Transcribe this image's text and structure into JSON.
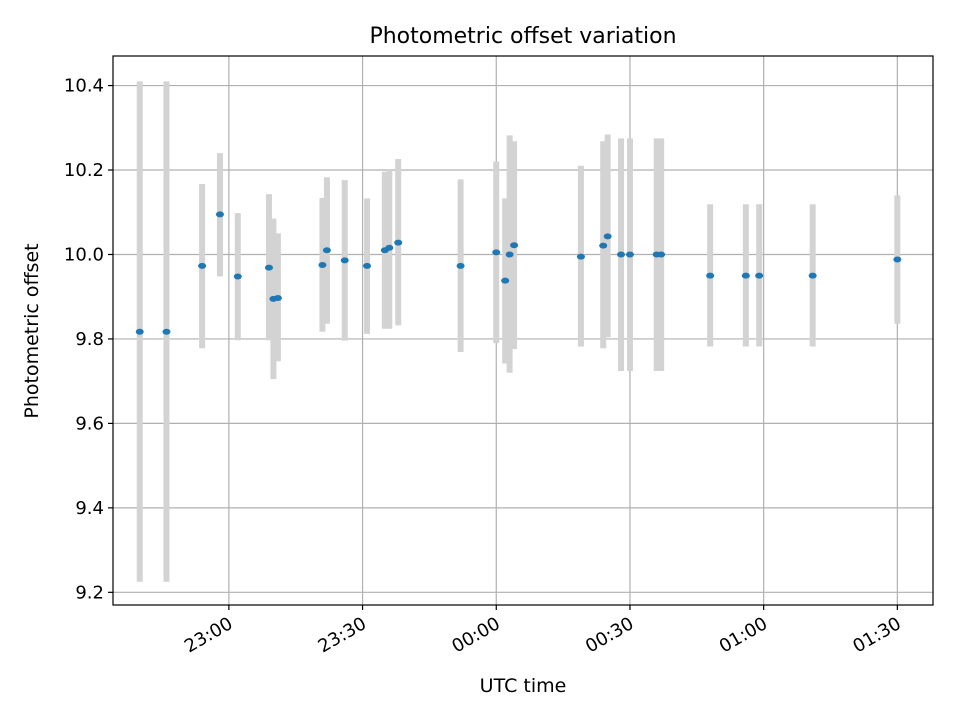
{
  "chart_data": {
    "type": "scatter",
    "title": "Photometric offset variation",
    "xlabel": "UTC time",
    "ylabel": "Photometric offset",
    "x_unit": "UTC time (hh:mm, evening to early morning)",
    "xlim": [
      "22:34",
      "01:38"
    ],
    "ylim": [
      9.17,
      10.47
    ],
    "xticks": [
      "23:00",
      "23:30",
      "00:00",
      "00:30",
      "01:00",
      "01:30"
    ],
    "yticks": [
      9.2,
      9.4,
      9.6,
      9.8,
      10.0,
      10.2,
      10.4
    ],
    "ytick_labels": [
      "9.2",
      "9.4",
      "9.6",
      "9.8",
      "10.0",
      "10.2",
      "10.4"
    ],
    "grid": true,
    "legend": "none",
    "colors": {
      "point": "#1f77b4",
      "errorbar": "#d3d3d3",
      "grid": "#b0b0b0"
    },
    "series": [
      {
        "points": [
          {
            "t": "22:40",
            "y": 9.817,
            "lo": 9.225,
            "hi": 10.41
          },
          {
            "t": "22:46",
            "y": 9.817,
            "lo": 9.225,
            "hi": 10.41
          },
          {
            "t": "22:54",
            "y": 9.973,
            "lo": 9.778,
            "hi": 10.167
          },
          {
            "t": "22:58",
            "y": 10.095,
            "lo": 9.948,
            "hi": 10.24
          },
          {
            "t": "23:02",
            "y": 9.948,
            "lo": 9.797,
            "hi": 10.098
          },
          {
            "t": "23:09",
            "y": 9.969,
            "lo": 9.797,
            "hi": 10.143
          },
          {
            "t": "23:10",
            "y": 9.895,
            "lo": 9.705,
            "hi": 10.085
          },
          {
            "t": "23:11",
            "y": 9.897,
            "lo": 9.747,
            "hi": 10.05
          },
          {
            "t": "23:21",
            "y": 9.975,
            "lo": 9.817,
            "hi": 10.134
          },
          {
            "t": "23:22",
            "y": 10.01,
            "lo": 9.836,
            "hi": 10.183
          },
          {
            "t": "23:26",
            "y": 9.986,
            "lo": 9.796,
            "hi": 10.176
          },
          {
            "t": "23:31",
            "y": 9.973,
            "lo": 9.812,
            "hi": 10.133
          },
          {
            "t": "23:35",
            "y": 10.01,
            "lo": 9.824,
            "hi": 10.196
          },
          {
            "t": "23:36",
            "y": 10.016,
            "lo": 9.824,
            "hi": 10.2
          },
          {
            "t": "23:38",
            "y": 10.028,
            "lo": 9.832,
            "hi": 10.226
          },
          {
            "t": "23:52",
            "y": 9.973,
            "lo": 9.769,
            "hi": 10.178
          },
          {
            "t": "00:00",
            "y": 10.005,
            "lo": 9.79,
            "hi": 10.22
          },
          {
            "t": "00:02",
            "y": 9.938,
            "lo": 9.742,
            "hi": 10.133
          },
          {
            "t": "00:03",
            "y": 10.0,
            "lo": 9.72,
            "hi": 10.282
          },
          {
            "t": "00:04",
            "y": 10.022,
            "lo": 9.776,
            "hi": 10.268
          },
          {
            "t": "00:19",
            "y": 9.995,
            "lo": 9.782,
            "hi": 10.21
          },
          {
            "t": "00:24",
            "y": 10.021,
            "lo": 9.778,
            "hi": 10.268
          },
          {
            "t": "00:25",
            "y": 10.043,
            "lo": 9.804,
            "hi": 10.284
          },
          {
            "t": "00:28",
            "y": 10.0,
            "lo": 9.724,
            "hi": 10.275
          },
          {
            "t": "00:30",
            "y": 10.0,
            "lo": 9.724,
            "hi": 10.275
          },
          {
            "t": "00:36",
            "y": 10.0,
            "lo": 9.724,
            "hi": 10.275
          },
          {
            "t": "00:37",
            "y": 10.0,
            "lo": 9.724,
            "hi": 10.275
          },
          {
            "t": "00:48",
            "y": 9.95,
            "lo": 9.782,
            "hi": 10.119
          },
          {
            "t": "00:56",
            "y": 9.95,
            "lo": 9.782,
            "hi": 10.119
          },
          {
            "t": "00:59",
            "y": 9.95,
            "lo": 9.782,
            "hi": 10.119
          },
          {
            "t": "01:11",
            "y": 9.95,
            "lo": 9.782,
            "hi": 10.119
          },
          {
            "t": "01:30",
            "y": 9.988,
            "lo": 9.836,
            "hi": 10.14
          }
        ]
      }
    ]
  }
}
